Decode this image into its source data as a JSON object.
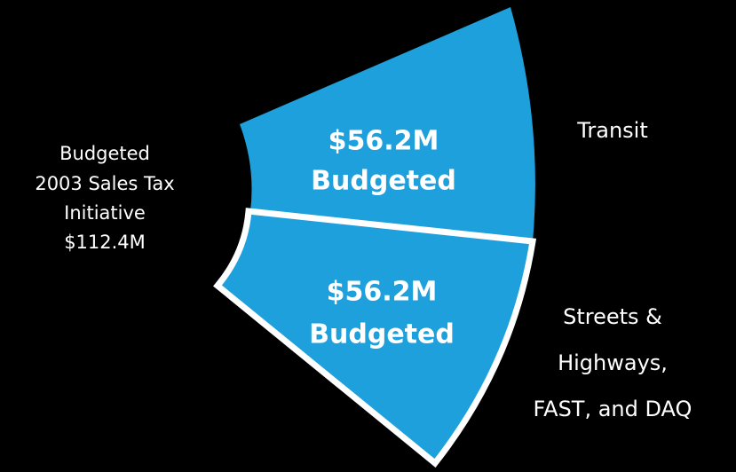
{
  "center_label": [
    "Budgeted",
    "2003 Sales Tax",
    "Initiative",
    "$112.4M"
  ],
  "segments": [
    {
      "amount": "$56.2M",
      "status": "Budgeted",
      "name": [
        "Transit"
      ]
    },
    {
      "amount": "$56.2M",
      "status": "Budgeted",
      "name": [
        "Streets &",
        "Highways,",
        "FAST, and DAQ"
      ]
    }
  ]
}
